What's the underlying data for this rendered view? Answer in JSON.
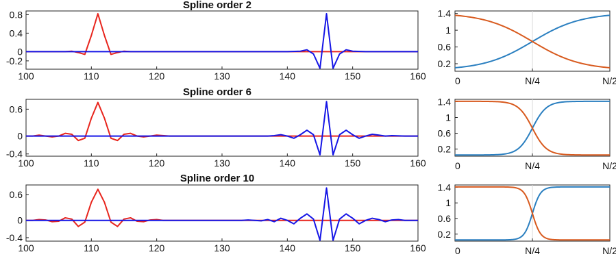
{
  "colors": {
    "red": "#e8251d",
    "blue": "#1515e6",
    "teal": "#2a7fc0",
    "orange": "#d85a1e",
    "axis": "#222222",
    "grid": "#d9d9d9"
  },
  "chart_data": [
    {
      "type": "line",
      "title": "Spline order 2",
      "xlim": [
        100,
        160
      ],
      "ylim": [
        -0.38,
        0.88
      ],
      "xticks": [
        100,
        110,
        120,
        130,
        140,
        150,
        160
      ],
      "yticks": [
        0.8,
        0.4,
        0,
        -0.2
      ],
      "ytick_labels": [
        "0.8",
        "0.4",
        "0",
        "-0.2"
      ],
      "series": [
        {
          "color": "red",
          "x": [
            100,
            102,
            104,
            106,
            107,
            108,
            109,
            110,
            111,
            112,
            113,
            114,
            115,
            116,
            118,
            120,
            125,
            130,
            135,
            140,
            142,
            143,
            144,
            145,
            146,
            147,
            148,
            149,
            150,
            152,
            155,
            160
          ],
          "y": [
            0,
            0,
            0,
            0,
            0.01,
            -0.02,
            -0.06,
            0.35,
            0.82,
            0.35,
            -0.06,
            -0.02,
            0.01,
            0,
            0,
            0,
            0,
            0,
            0,
            0,
            0,
            0,
            0,
            0,
            0,
            0,
            0,
            0,
            0,
            0,
            0,
            0
          ]
        },
        {
          "color": "blue",
          "x": [
            100,
            105,
            110,
            115,
            120,
            125,
            130,
            135,
            140,
            142,
            143,
            144,
            145,
            146,
            147,
            148,
            149,
            150,
            152,
            155,
            160
          ],
          "y": [
            0,
            0,
            0,
            0,
            0,
            0,
            0,
            0,
            0,
            0.01,
            0.04,
            -0.05,
            -0.36,
            0.82,
            -0.36,
            -0.05,
            0.04,
            0.01,
            0,
            0,
            0
          ]
        }
      ]
    },
    {
      "type": "line",
      "title": "Spline order 6",
      "xlim": [
        100,
        160
      ],
      "ylim": [
        -0.45,
        0.82
      ],
      "xticks": [
        100,
        110,
        120,
        130,
        140,
        150,
        160
      ],
      "yticks": [
        0.6,
        0,
        -0.4
      ],
      "ytick_labels": [
        "0.6",
        "0",
        "-0.4"
      ],
      "series": [
        {
          "color": "red",
          "x": [
            100,
            101,
            102,
            103,
            104,
            105,
            106,
            107,
            108,
            109,
            110,
            111,
            112,
            113,
            114,
            115,
            116,
            117,
            118,
            119,
            120,
            122,
            125,
            130,
            135,
            140,
            145,
            150,
            155,
            160
          ],
          "y": [
            0,
            0,
            0.02,
            0,
            -0.02,
            0,
            0.06,
            0.04,
            -0.1,
            -0.05,
            0.4,
            0.75,
            0.4,
            -0.05,
            -0.1,
            0.04,
            0.06,
            0,
            -0.02,
            0,
            0.02,
            0,
            0,
            0,
            0,
            0,
            0,
            0,
            0,
            0
          ]
        },
        {
          "color": "blue",
          "x": [
            100,
            105,
            110,
            115,
            120,
            125,
            130,
            135,
            137,
            138,
            139,
            140,
            141,
            142,
            143,
            144,
            145,
            146,
            147,
            148,
            149,
            150,
            151,
            152,
            153,
            154,
            155,
            156,
            158,
            160
          ],
          "y": [
            0,
            0,
            0,
            0,
            0,
            0,
            0,
            0,
            0,
            0.01,
            0.03,
            0,
            -0.05,
            0.03,
            0.13,
            0.03,
            -0.42,
            0.77,
            -0.42,
            0.03,
            0.13,
            0.03,
            -0.05,
            0,
            0.04,
            0.02,
            0,
            0.01,
            0,
            0
          ]
        }
      ]
    },
    {
      "type": "line",
      "title": "Spline order 10",
      "xlim": [
        100,
        160
      ],
      "ylim": [
        -0.48,
        0.82
      ],
      "xticks": [
        100,
        110,
        120,
        130,
        140,
        150,
        160
      ],
      "yticks": [
        0.6,
        0,
        -0.4
      ],
      "ytick_labels": [
        "0.6",
        "0",
        "-0.4"
      ],
      "series": [
        {
          "color": "red",
          "x": [
            100,
            101,
            102,
            103,
            104,
            105,
            106,
            107,
            108,
            109,
            110,
            111,
            112,
            113,
            114,
            115,
            116,
            117,
            118,
            119,
            120,
            121,
            122,
            123,
            124,
            125,
            130,
            140,
            150,
            160
          ],
          "y": [
            0,
            0,
            0.02,
            0.01,
            -0.03,
            -0.02,
            0.06,
            0.03,
            -0.14,
            -0.04,
            0.42,
            0.72,
            0.42,
            -0.04,
            -0.14,
            0.03,
            0.06,
            -0.02,
            -0.03,
            0.01,
            0.02,
            0,
            0,
            0,
            0,
            0,
            0,
            0,
            0,
            0
          ]
        },
        {
          "color": "blue",
          "x": [
            100,
            125,
            130,
            133,
            134,
            135,
            136,
            137,
            138,
            139,
            140,
            141,
            142,
            143,
            144,
            145,
            146,
            147,
            148,
            149,
            150,
            151,
            152,
            153,
            154,
            155,
            156,
            157,
            158,
            160
          ],
          "y": [
            0,
            0,
            0,
            0,
            0.01,
            0,
            -0.01,
            0.02,
            -0.03,
            0.05,
            0,
            -0.08,
            0.05,
            0.15,
            0.03,
            -0.46,
            0.75,
            -0.46,
            0.03,
            0.15,
            0.05,
            -0.08,
            0,
            0.05,
            0.02,
            -0.03,
            0.01,
            0.02,
            0,
            0
          ]
        }
      ]
    },
    {
      "type": "line",
      "xlim": [
        0,
        2
      ],
      "ylim": [
        0.02,
        1.46
      ],
      "xticks": [
        0,
        1,
        2
      ],
      "xtick_labels": [
        "0",
        "N/4",
        "N/2"
      ],
      "yticks": [
        1.4,
        1,
        0.6,
        0.2
      ],
      "ytick_labels": [
        "1.4",
        "1",
        "0.6",
        "0.2"
      ],
      "steepness": 3.2,
      "series": [
        {
          "color": "teal",
          "shape": "rising",
          "low": 0.05,
          "high": 1.41
        },
        {
          "color": "orange",
          "shape": "falling",
          "low": 0.05,
          "high": 1.41
        }
      ]
    },
    {
      "type": "line",
      "xlim": [
        0,
        2
      ],
      "ylim": [
        0.02,
        1.46
      ],
      "xticks": [
        0,
        1,
        2
      ],
      "xtick_labels": [
        "0",
        "N/4",
        "N/2"
      ],
      "yticks": [
        1.4,
        1,
        0.6,
        0.2
      ],
      "ytick_labels": [
        "1.4",
        "1",
        "0.6",
        "0.2"
      ],
      "steepness": 11,
      "series": [
        {
          "color": "teal",
          "shape": "rising",
          "low": 0.05,
          "high": 1.41
        },
        {
          "color": "orange",
          "shape": "falling",
          "low": 0.05,
          "high": 1.41
        }
      ]
    },
    {
      "type": "line",
      "xlim": [
        0,
        2
      ],
      "ylim": [
        0.02,
        1.46
      ],
      "xticks": [
        0,
        1,
        2
      ],
      "xtick_labels": [
        "0",
        "N/4",
        "N/2"
      ],
      "yticks": [
        1.4,
        1,
        0.6,
        0.2
      ],
      "ytick_labels": [
        "1.4",
        "1",
        "0.6",
        "0.2"
      ],
      "steepness": 19,
      "series": [
        {
          "color": "teal",
          "shape": "rising",
          "low": 0.05,
          "high": 1.41
        },
        {
          "color": "orange",
          "shape": "falling",
          "low": 0.05,
          "high": 1.41
        }
      ]
    }
  ]
}
